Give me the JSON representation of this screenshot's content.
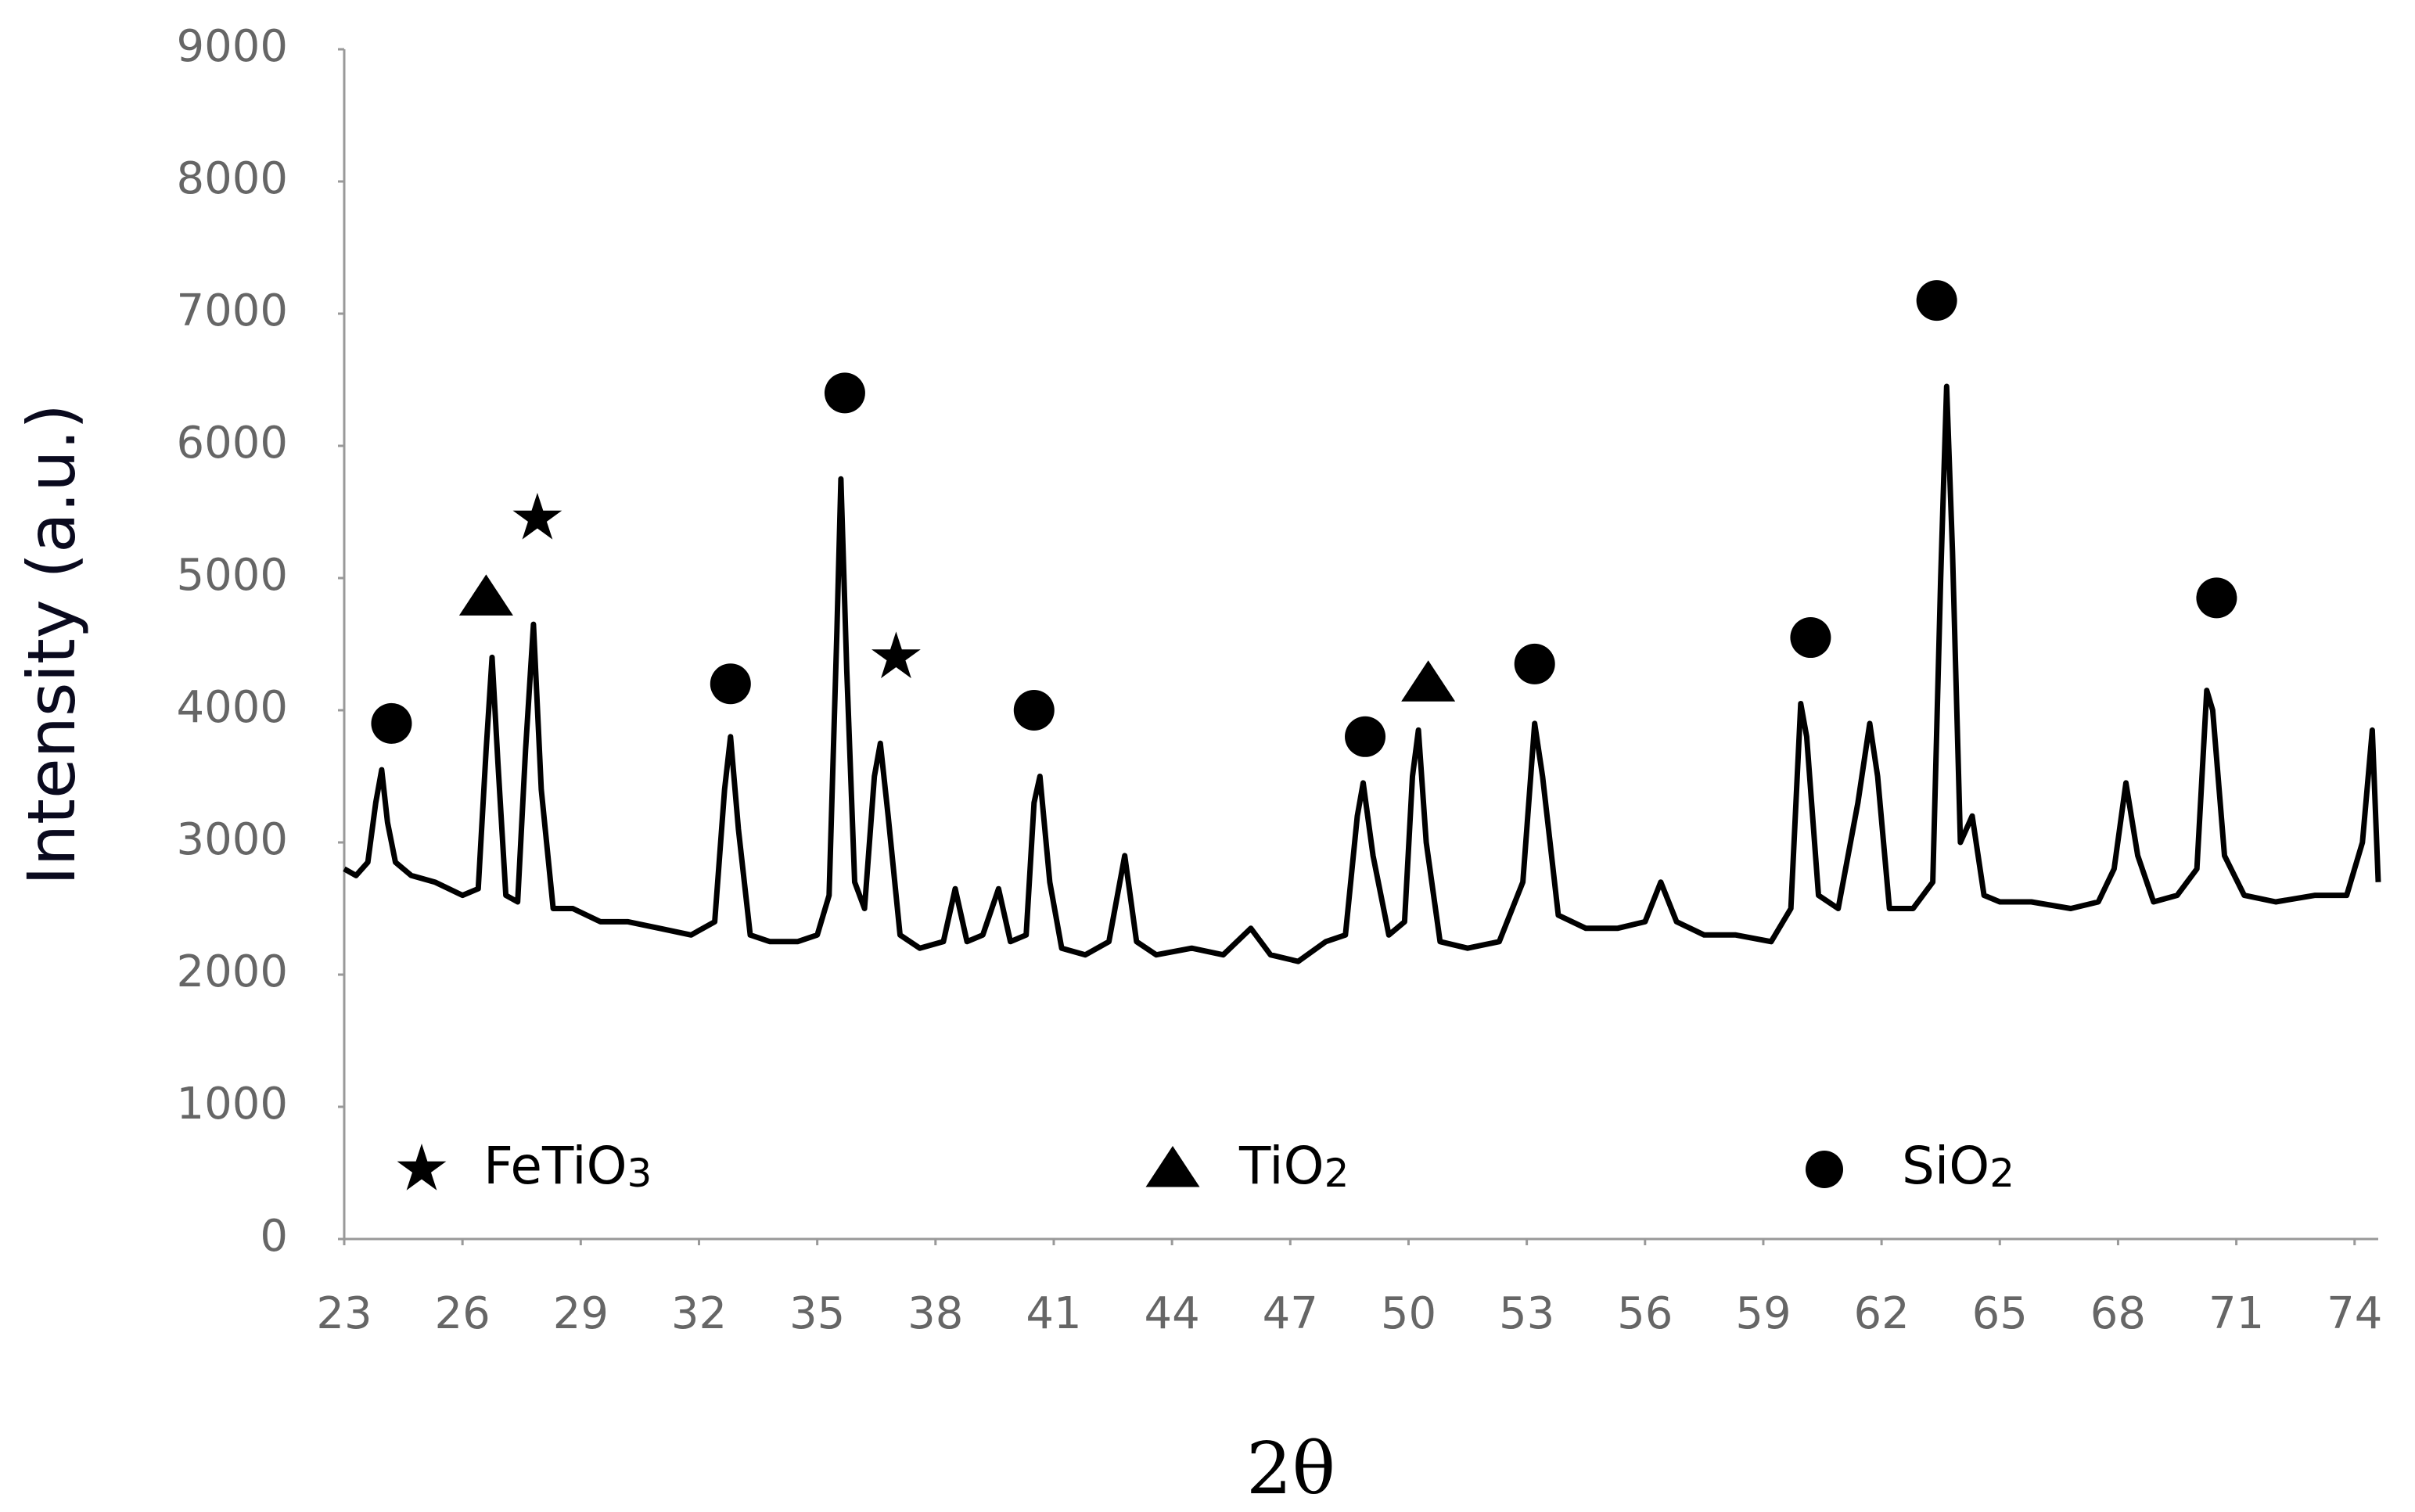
{
  "chart_data": {
    "type": "line",
    "x_label": "2θ",
    "y_label": "Intensity (a.u.)",
    "x": [
      23,
      23.3,
      23.6,
      23.8,
      23.95,
      24.1,
      24.3,
      24.7,
      25.3,
      26.0,
      26.4,
      26.6,
      26.75,
      26.9,
      27.1,
      27.4,
      27.6,
      27.8,
      28.0,
      28.3,
      28.8,
      29.5,
      30.2,
      31.0,
      31.8,
      32.4,
      32.65,
      32.8,
      33.0,
      33.3,
      33.8,
      34.5,
      35.0,
      35.3,
      35.5,
      35.6,
      35.75,
      35.95,
      36.2,
      36.45,
      36.6,
      36.8,
      37.1,
      37.6,
      38.2,
      38.5,
      38.8,
      39.2,
      39.6,
      39.9,
      40.3,
      40.5,
      40.65,
      40.9,
      41.2,
      41.8,
      42.4,
      42.8,
      43.1,
      43.6,
      44.5,
      45.3,
      46.0,
      46.5,
      47.2,
      47.9,
      48.4,
      48.7,
      48.85,
      49.1,
      49.5,
      49.9,
      50.1,
      50.25,
      50.45,
      50.8,
      51.5,
      52.3,
      52.9,
      53.2,
      53.4,
      53.8,
      54.5,
      55.3,
      56.0,
      56.4,
      56.8,
      57.5,
      58.3,
      59.2,
      59.7,
      59.95,
      60.1,
      60.4,
      60.9,
      61.4,
      61.7,
      61.9,
      62.2,
      62.8,
      63.3,
      63.5,
      63.65,
      63.8,
      64.0,
      64.3,
      64.6,
      65.0,
      65.8,
      66.8,
      67.5,
      67.9,
      68.2,
      68.5,
      68.9,
      69.5,
      70.0,
      70.25,
      70.4,
      70.7,
      71.2,
      72.0,
      73.0,
      73.8,
      74.2,
      74.45,
      74.6
    ],
    "series": [
      {
        "color": "#000000",
        "values": [
          2800,
          2750,
          2850,
          3300,
          3550,
          3150,
          2850,
          2750,
          2700,
          2600,
          2650,
          3700,
          4400,
          3600,
          2600,
          2550,
          3700,
          4650,
          3400,
          2500,
          2500,
          2400,
          2400,
          2350,
          2300,
          2400,
          3400,
          3800,
          3100,
          2300,
          2250,
          2250,
          2300,
          2600,
          4600,
          5750,
          4300,
          2700,
          2500,
          3500,
          3750,
          3200,
          2300,
          2200,
          2250,
          2650,
          2250,
          2300,
          2650,
          2250,
          2300,
          3300,
          3500,
          2700,
          2200,
          2150,
          2250,
          2900,
          2250,
          2150,
          2200,
          2150,
          2350,
          2150,
          2100,
          2250,
          2300,
          3200,
          3450,
          2900,
          2300,
          2400,
          3500,
          3850,
          3000,
          2250,
          2200,
          2250,
          2700,
          3900,
          3500,
          2450,
          2350,
          2350,
          2400,
          2700,
          2400,
          2300,
          2300,
          2250,
          2500,
          4050,
          3800,
          2600,
          2500,
          3300,
          3900,
          3500,
          2500,
          2500,
          2700,
          5000,
          6450,
          5200,
          3000,
          3200,
          2600,
          2550,
          2550,
          2500,
          2550,
          2800,
          3450,
          2900,
          2550,
          2600,
          2800,
          4150,
          4000,
          2900,
          2600,
          2550,
          2600,
          2600,
          3000,
          3850,
          2700
        ]
      }
    ],
    "xlim": [
      23,
      74.6
    ],
    "xticks": [
      23,
      26,
      29,
      32,
      35,
      38,
      41,
      44,
      47,
      50,
      53,
      56,
      59,
      62,
      65,
      68,
      71,
      74
    ],
    "ylim": [
      0,
      9000
    ],
    "yticks": [
      0,
      1000,
      2000,
      3000,
      4000,
      5000,
      6000,
      7000,
      8000,
      9000
    ],
    "markers": [
      {
        "symbol": "circle",
        "x": 24.2,
        "y": 3900
      },
      {
        "symbol": "triangle",
        "x": 26.6,
        "y": 4850
      },
      {
        "symbol": "star",
        "x": 27.9,
        "y": 5450
      },
      {
        "symbol": "circle",
        "x": 32.8,
        "y": 4200
      },
      {
        "symbol": "circle",
        "x": 35.7,
        "y": 6400
      },
      {
        "symbol": "star",
        "x": 37.0,
        "y": 4400
      },
      {
        "symbol": "circle",
        "x": 40.5,
        "y": 4000
      },
      {
        "symbol": "circle",
        "x": 48.9,
        "y": 3800
      },
      {
        "symbol": "triangle",
        "x": 50.5,
        "y": 4200
      },
      {
        "symbol": "circle",
        "x": 53.2,
        "y": 4350
      },
      {
        "symbol": "circle",
        "x": 60.2,
        "y": 4550
      },
      {
        "symbol": "circle",
        "x": 63.4,
        "y": 7100
      },
      {
        "symbol": "circle",
        "x": 70.5,
        "y": 4850
      }
    ],
    "legend_items": [
      {
        "symbol": "star",
        "label": "FeTiO3"
      },
      {
        "symbol": "triangle",
        "label": "TiO2"
      },
      {
        "symbol": "circle",
        "label": "SiO2"
      }
    ]
  }
}
